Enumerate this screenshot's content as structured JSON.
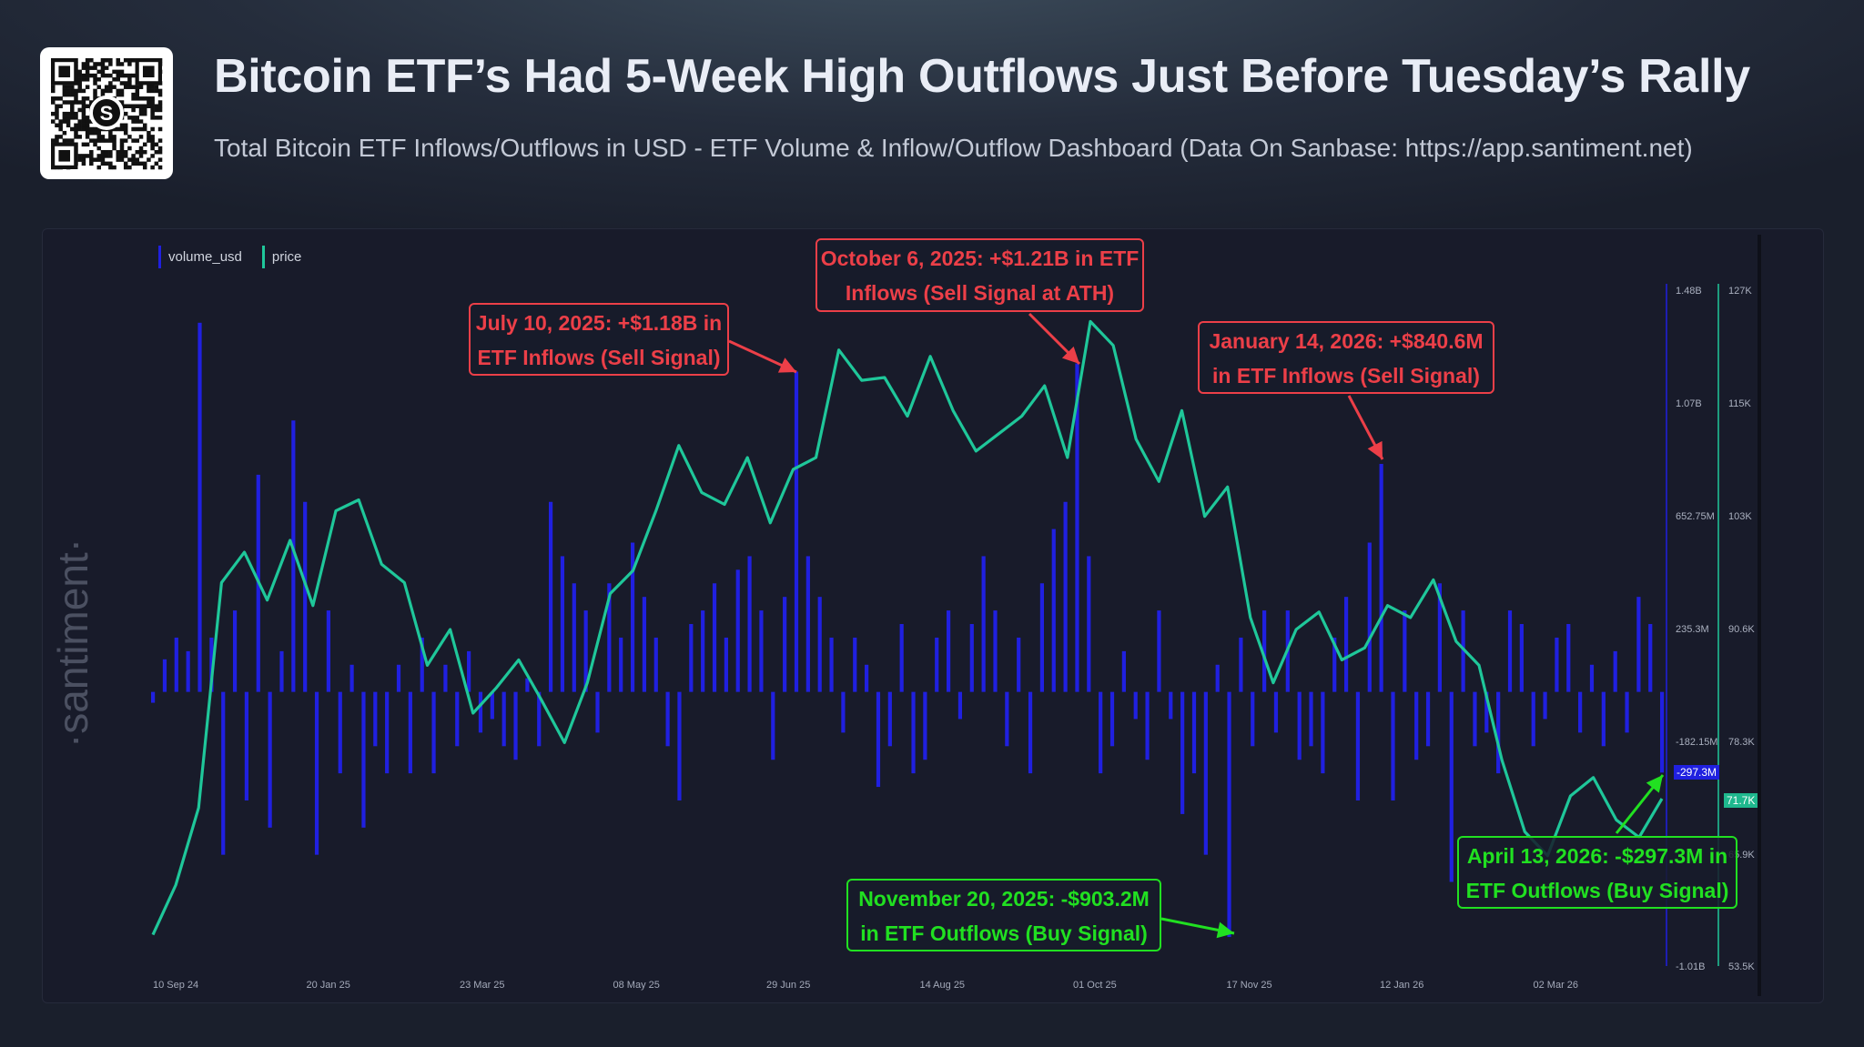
{
  "header": {
    "title": "Bitcoin ETF’s Had 5-Week High Outflows Just Before Tuesday’s Rally",
    "subtitle": "Total Bitcoin ETF Inflows/Outflows in USD - ETF Volume & Inflow/Outflow Dashboard (Data On Sanbase: https://app.santiment.net)",
    "qr_logo": "S"
  },
  "watermark": "·santiment·",
  "colors": {
    "volume": "#2020e0",
    "price": "#1fc79a",
    "sell": "#ec3f48",
    "buy": "#21e021"
  },
  "chart_data": {
    "type": "bar+line",
    "legend": [
      "volume_usd",
      "price"
    ],
    "legend_position": "top-left",
    "x_tick_labels": [
      "10 Sep 24",
      "20 Jan 25",
      "23 Mar 25",
      "08 May 25",
      "29 Jun 25",
      "14 Aug 25",
      "01 Oct 25",
      "17 Nov 25",
      "12 Jan 26",
      "02 Mar 26"
    ],
    "volume_axis": {
      "ticks": [
        "1.48B",
        "1.07B",
        "652.75M",
        "235.3M",
        "-182.15M",
        "-1.01B"
      ],
      "range_millions": [
        -1010,
        1480
      ]
    },
    "price_axis": {
      "ticks": [
        "127K",
        "115K",
        "103K",
        "90.6K",
        "78.3K",
        "65.9K",
        "53.5K"
      ],
      "range_thousands": [
        53.5,
        127
      ]
    },
    "current_labels": {
      "volume": "-297.3M",
      "price": "71.7K"
    },
    "series": [
      {
        "name": "volume_usd",
        "unit": "USD millions",
        "values": [
          -40,
          120,
          200,
          150,
          1360,
          200,
          -600,
          300,
          -400,
          800,
          -500,
          150,
          1000,
          700,
          -600,
          300,
          -300,
          100,
          -500,
          -200,
          -300,
          100,
          -300,
          200,
          -300,
          100,
          -200,
          150,
          -150,
          -100,
          -200,
          -250,
          50,
          -200,
          700,
          500,
          400,
          300,
          -150,
          400,
          200,
          550,
          350,
          200,
          -200,
          -400,
          250,
          300,
          400,
          200,
          450,
          500,
          300,
          -250,
          350,
          1180,
          500,
          350,
          200,
          -150,
          200,
          100,
          -350,
          -200,
          250,
          -300,
          -250,
          200,
          300,
          -100,
          250,
          500,
          300,
          -200,
          200,
          -300,
          400,
          600,
          700,
          1210,
          500,
          -300,
          -200,
          150,
          -100,
          -250,
          300,
          -100,
          -450,
          -300,
          -600,
          100,
          -903,
          200,
          -200,
          300,
          -150,
          300,
          -250,
          -200,
          -300,
          200,
          350,
          -400,
          550,
          840,
          -400,
          300,
          -250,
          -200,
          400,
          -700,
          300,
          -200,
          -150,
          -300,
          300,
          250,
          -200,
          -100,
          200,
          250,
          -150,
          100,
          -200,
          150,
          -150,
          350,
          250,
          -297.3
        ]
      },
      {
        "name": "price",
        "unit": "USD thousands",
        "values": [
          56.9,
          62.3,
          70.7,
          95.2,
          98.5,
          93.3,
          99.8,
          92.7,
          103,
          104.2,
          97.2,
          95.2,
          86.2,
          90.1,
          81,
          83.7,
          86.8,
          82.4,
          77.8,
          84.3,
          94,
          96.5,
          103,
          110.1,
          105,
          103.7,
          108.8,
          101.7,
          107.5,
          108.8,
          120.5,
          117.2,
          117.5,
          113.3,
          119.8,
          113.9,
          109.5,
          111.4,
          113.3,
          116.6,
          108.8,
          123.6,
          121,
          110.8,
          106.2,
          113.9,
          102.4,
          105.6,
          91.4,
          84.3,
          90.1,
          92,
          86.8,
          88.1,
          92.7,
          91.4,
          95.5,
          88.8,
          86.2,
          75.9,
          68.1,
          65.5,
          72,
          74,
          69.4,
          67.5,
          71.7
        ]
      }
    ],
    "annotations": [
      {
        "text": "July 10, 2025: +$1.18B in ETF Inflows (Sell Signal)",
        "line1": "July 10, 2025: +$1.18B in",
        "line2": "ETF Inflows (Sell Signal)",
        "kind": "sell"
      },
      {
        "text": "October 6, 2025: +$1.21B in ETF Inflows (Sell Signal at ATH)",
        "line1": "October 6, 2025: +$1.21B in ETF",
        "line2": "Inflows (Sell Signal at ATH)",
        "kind": "sell"
      },
      {
        "text": "January 14, 2026: +$840.6M in ETF Inflows (Sell Signal)",
        "line1": "January 14, 2026: +$840.6M",
        "line2": "in ETF Inflows (Sell Signal)",
        "kind": "sell"
      },
      {
        "text": "November 20, 2025: -$903.2M in ETF Outflows (Buy Signal)",
        "line1": "November 20, 2025: -$903.2M",
        "line2": "in ETF Outflows (Buy Signal)",
        "kind": "buy"
      },
      {
        "text": "April 13, 2026: -$297.3M in ETF Outflows (Buy Signal)",
        "line1": "April 13, 2026: -$297.3M in",
        "line2": "ETF Outflows (Buy Signal)",
        "kind": "buy"
      }
    ]
  }
}
